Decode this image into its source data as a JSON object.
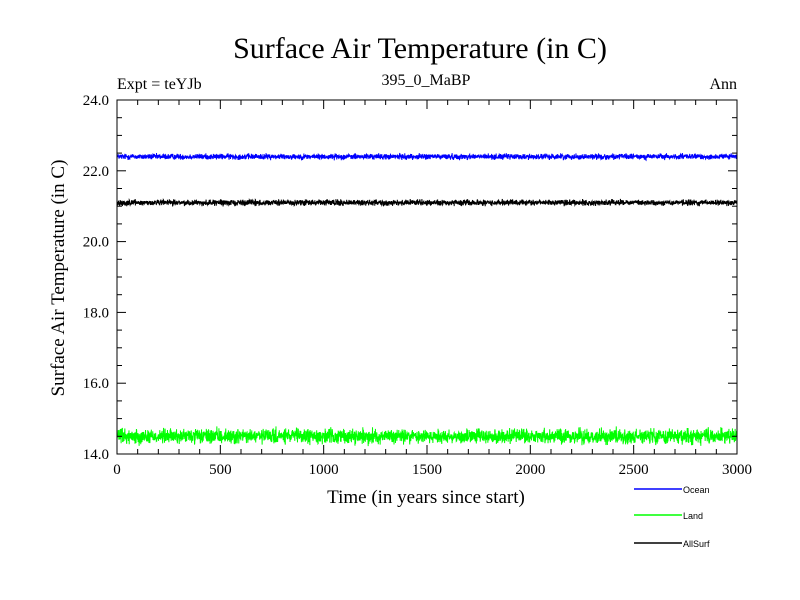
{
  "chart_data": {
    "type": "line",
    "title": "Surface Air Temperature (in C)",
    "subtitle": "395_0_MaBP",
    "left_label": "Expt = teYJb",
    "right_label": "Ann",
    "xlabel": "Time (in years since start)",
    "ylabel": "Surface Air Temperature (in C)",
    "xlim": [
      0,
      3000
    ],
    "ylim": [
      14.0,
      24.0
    ],
    "xticks": [
      0,
      500,
      1000,
      1500,
      2000,
      2500,
      3000
    ],
    "xtick_labels": [
      "0",
      "500",
      "1000",
      "1500",
      "2000",
      "2500",
      "3000"
    ],
    "yticks": [
      14.0,
      16.0,
      18.0,
      20.0,
      22.0,
      24.0
    ],
    "ytick_labels": [
      "14.0",
      "16.0",
      "18.0",
      "20.0",
      "22.0",
      "24.0"
    ],
    "grid": false,
    "legend_position": "bottom-right",
    "series": [
      {
        "name": "Ocean",
        "color": "#0000ff",
        "mean": 22.4,
        "noise": 0.07,
        "n_points": 3000
      },
      {
        "name": "Land",
        "color": "#00ff00",
        "mean": 14.5,
        "noise": 0.18,
        "n_points": 3000
      },
      {
        "name": "AllSurf",
        "color": "#000000",
        "mean": 21.1,
        "noise": 0.07,
        "n_points": 3000
      }
    ]
  }
}
